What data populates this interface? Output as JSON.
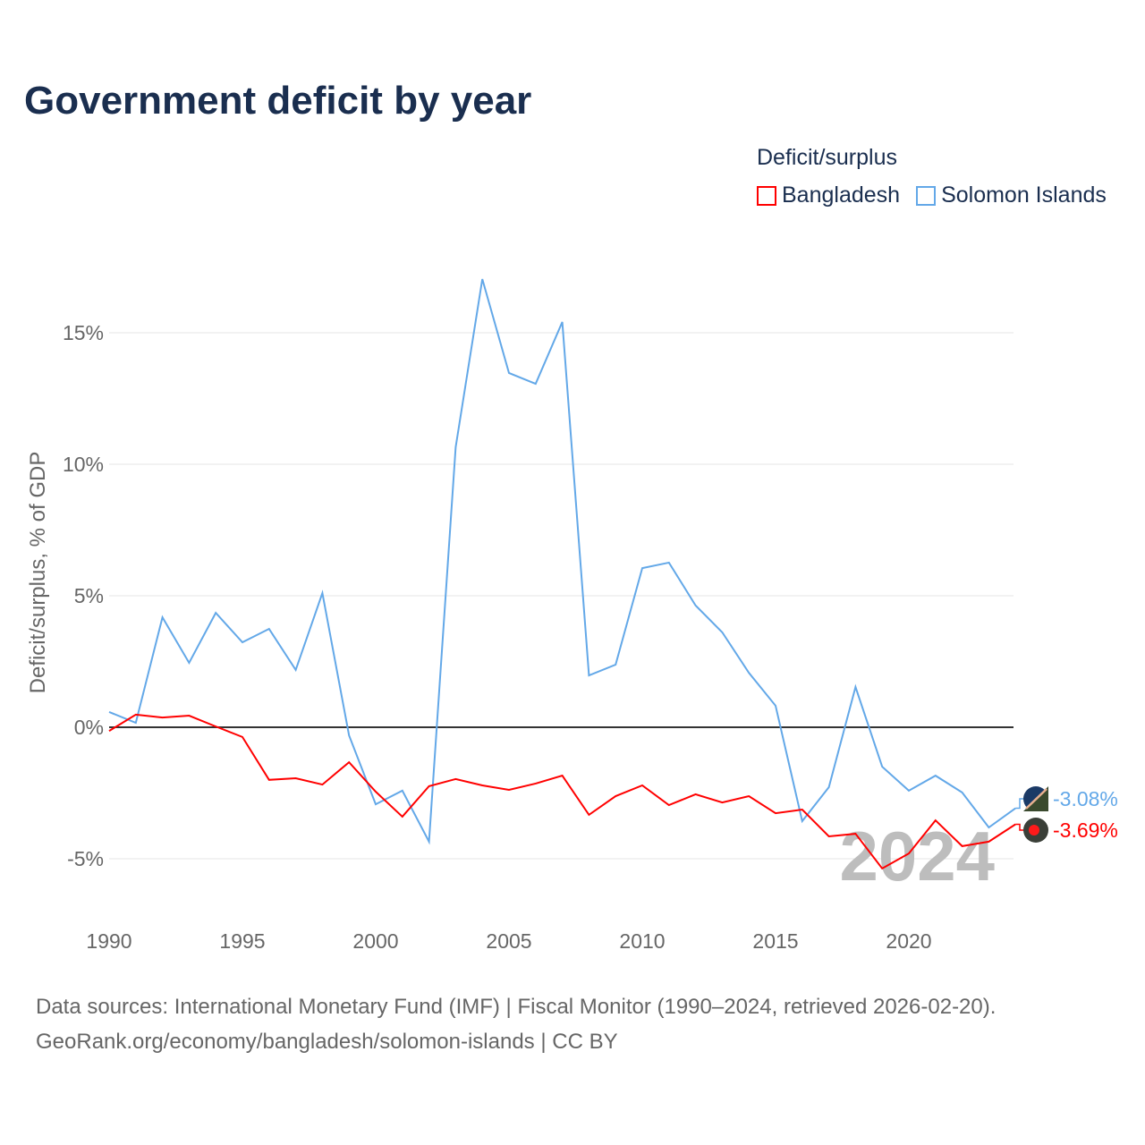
{
  "chart_data": {
    "type": "line",
    "title": "Government deficit by year",
    "ylabel": "Deficit/surplus, % of GDP",
    "xlabel": "",
    "xlim": [
      1990,
      2024
    ],
    "ylim": [
      -7.5,
      18
    ],
    "x_ticks": [
      1990,
      1995,
      2000,
      2005,
      2010,
      2015,
      2020
    ],
    "x_tick_labels": [
      "1990",
      "1995",
      "2000",
      "2005",
      "2010",
      "2015",
      "2020"
    ],
    "y_ticks": [
      -5,
      0,
      5,
      10,
      15
    ],
    "y_tick_labels": [
      "-5%",
      "0%",
      "5%",
      "10%",
      "15%"
    ],
    "grid": true,
    "legend_title": "Deficit/surplus",
    "legend_position": "top-right",
    "year_watermark": "2024",
    "x": [
      1990,
      1991,
      1992,
      1993,
      1994,
      1995,
      1996,
      1997,
      1998,
      1999,
      2000,
      2001,
      2002,
      2003,
      2004,
      2005,
      2006,
      2007,
      2008,
      2009,
      2010,
      2011,
      2012,
      2013,
      2014,
      2015,
      2016,
      2017,
      2018,
      2019,
      2020,
      2021,
      2022,
      2023,
      2024
    ],
    "series": [
      {
        "name": "Bangladesh",
        "color": "#ff0000",
        "end_label": "-3.69%",
        "values": [
          -0.14,
          0.48,
          0.37,
          0.44,
          0.03,
          -0.37,
          -2.0,
          -1.94,
          -2.18,
          -1.33,
          -2.45,
          -3.4,
          -2.24,
          -1.97,
          -2.21,
          -2.38,
          -2.14,
          -1.84,
          -3.33,
          -2.62,
          -2.21,
          -2.96,
          -2.55,
          -2.86,
          -2.62,
          -3.27,
          -3.13,
          -4.15,
          -4.05,
          -5.37,
          -4.8,
          -3.54,
          -4.52,
          -4.35,
          -3.69
        ]
      },
      {
        "name": "Solomon Islands",
        "color": "#63a8e8",
        "end_label": "-3.08%",
        "values": [
          0.58,
          0.17,
          4.18,
          2.45,
          4.35,
          3.23,
          3.74,
          2.18,
          5.1,
          -0.31,
          -2.93,
          -2.41,
          -4.35,
          10.65,
          17.04,
          13.47,
          13.06,
          15.41,
          1.97,
          2.38,
          6.05,
          6.26,
          4.63,
          3.61,
          2.07,
          0.82,
          -3.57,
          -2.28,
          1.53,
          -1.5,
          -2.41,
          -1.84,
          -2.48,
          -3.81,
          -3.08
        ]
      }
    ]
  },
  "source": {
    "line1": "Data sources: International Monetary Fund (IMF) | Fiscal Monitor (1990–2024, retrieved 2026-02-20).",
    "line2": "GeoRank.org/economy/bangladesh/solomon-islands | CC BY"
  }
}
